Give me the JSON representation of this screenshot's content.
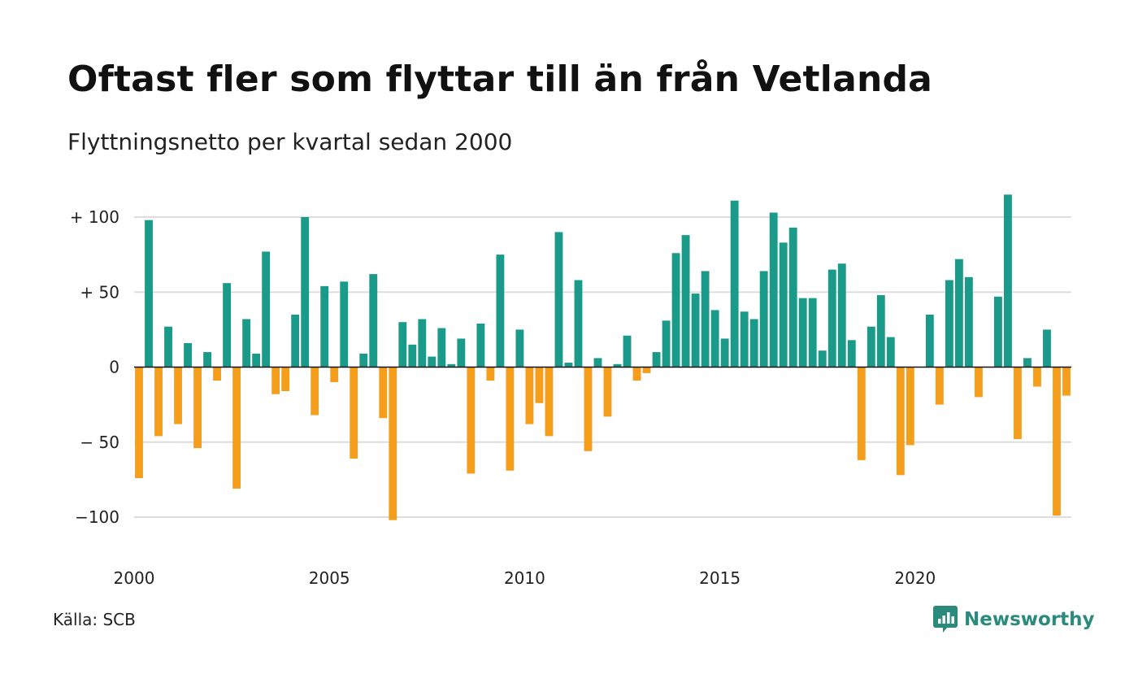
{
  "title": "Oftast fler som flyttar till än från Vetlanda",
  "subtitle": "Flyttningsnetto per kvartal sedan 2000",
  "source": "Källa: SCB",
  "brand": {
    "name": "Newsworthy",
    "icon": "newsworthy-chat-bars-icon",
    "color": "#2a8b7d"
  },
  "chart_data": {
    "type": "bar",
    "title": "Oftast fler som flyttar till än från Vetlanda",
    "subtitle": "Flyttningsnetto per kvartal sedan 2000",
    "xlabel": "",
    "ylabel": "",
    "ylim": [
      -110,
      118
    ],
    "grid": true,
    "y_ticks": [
      {
        "value": 100,
        "label": "+ 100"
      },
      {
        "value": 50,
        "label": "+  50"
      },
      {
        "value": 0,
        "label": "0"
      },
      {
        "value": -50,
        "label": "− 50"
      },
      {
        "value": -100,
        "label": "−100"
      }
    ],
    "x_ticks": [
      "2000",
      "2005",
      "2010",
      "2015",
      "2020"
    ],
    "first_quarter": "2000 Q1",
    "colors": {
      "positive": "#1a9a88",
      "negative": "#f59e1c"
    },
    "values": [
      -74,
      98,
      -46,
      27,
      -38,
      16,
      -54,
      10,
      -9,
      56,
      -81,
      32,
      9,
      77,
      -18,
      -16,
      35,
      100,
      -32,
      54,
      -10,
      57,
      -61,
      9,
      62,
      -34,
      -102,
      30,
      15,
      32,
      7,
      26,
      2,
      19,
      -71,
      29,
      -9,
      75,
      -69,
      25,
      -38,
      -24,
      -46,
      90,
      3,
      58,
      -56,
      6,
      -33,
      2,
      21,
      -9,
      -4,
      10,
      31,
      76,
      88,
      49,
      64,
      38,
      19,
      111,
      37,
      32,
      64,
      103,
      83,
      93,
      46,
      46,
      11,
      65,
      69,
      18,
      -62,
      27,
      48,
      20,
      -72,
      -52,
      0,
      35,
      -25,
      58,
      72,
      60,
      -20,
      0,
      47,
      115,
      -48,
      6,
      -13,
      25,
      -99,
      -19
    ]
  }
}
